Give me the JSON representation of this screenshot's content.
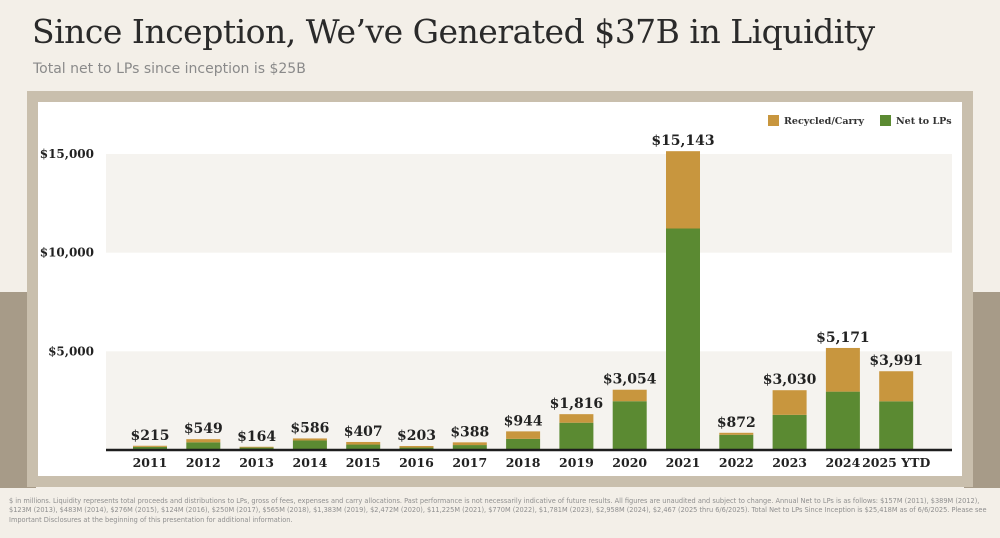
{
  "title": "Since Inception, We’ve Generated $37B in Liquidity",
  "subtitle": "Total net to LPs since inception is $25B",
  "footnote": "$ in millions. Liquidity represents total proceeds and distributions to LPs, gross of fees, expenses and carry allocations. Past performance is not necessarily indicative of future results. All figures are unaudited and subject to change. Annual Net to LPs is as follows: $157M (2011), $389M (2012), $123M (2013), $483M (2014), $276M (2015), $124M (2016), $250M (2017), $565M (2018), $1,383M (2019), $2,472M (2020), $11,225M (2021), $770M (2022), $1,781M (2023), $2,958M (2024), $2,467 (2025 thru 6/6/2025). Total Net to LPs Since Inception is $25,418M as of 6/6/2025. Please see Important Disclosures at the beginning of this presentation for additional information.",
  "colors": {
    "recycled": "#c8963e",
    "net": "#5b8a32"
  },
  "chart_data": {
    "type": "bar",
    "stacked": true,
    "title": "Since Inception, We’ve Generated $37B in Liquidity",
    "xlabel": "",
    "ylabel": "$ in millions",
    "ylim": [
      0,
      16000
    ],
    "yticks": [
      5000,
      10000,
      15000
    ],
    "ytick_labels": [
      "$5,000",
      "$10,000",
      "$15,000"
    ],
    "grid": false,
    "legend_position": "top-right",
    "categories": [
      "2011",
      "2012",
      "2013",
      "2014",
      "2015",
      "2016",
      "2017",
      "2018",
      "2019",
      "2020",
      "2021",
      "2022",
      "2023",
      "2024",
      "2025 YTD"
    ],
    "series": [
      {
        "name": "Net to LPs",
        "values": [
          157,
          389,
          123,
          483,
          276,
          124,
          250,
          565,
          1383,
          2472,
          11225,
          770,
          1781,
          2958,
          2467
        ]
      },
      {
        "name": "Recycled/Carry",
        "values": [
          58,
          160,
          41,
          103,
          131,
          79,
          138,
          379,
          433,
          582,
          3918,
          102,
          1249,
          2213,
          1524
        ]
      }
    ],
    "totals": [
      215,
      549,
      164,
      586,
      407,
      203,
      388,
      944,
      1816,
      3054,
      15143,
      872,
      3030,
      5171,
      3991
    ],
    "total_labels": [
      "$215",
      "$549",
      "$164",
      "$586",
      "$407",
      "$203",
      "$388",
      "$944",
      "$1,816",
      "$3,054",
      "$15,143",
      "$872",
      "$3,030",
      "$5,171",
      "$3,991"
    ],
    "legend": [
      {
        "label": "Recycled/Carry",
        "color": "#c8963e"
      },
      {
        "label": "Net to LPs",
        "color": "#5b8a32"
      }
    ]
  }
}
